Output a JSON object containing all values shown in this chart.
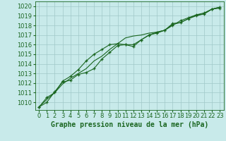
{
  "title": "Graphe pression niveau de la mer (hPa)",
  "bg_color": "#c8eaea",
  "grid_color": "#a0c8c8",
  "line_color": "#1a6620",
  "marker_color": "#1a6620",
  "xlim": [
    -0.5,
    23.5
  ],
  "ylim": [
    1009.2,
    1020.5
  ],
  "yticks": [
    1010,
    1011,
    1012,
    1013,
    1014,
    1015,
    1016,
    1017,
    1018,
    1019,
    1020
  ],
  "xticks": [
    0,
    1,
    2,
    3,
    4,
    5,
    6,
    7,
    8,
    9,
    10,
    11,
    12,
    13,
    14,
    15,
    16,
    17,
    18,
    19,
    20,
    21,
    22,
    23
  ],
  "line1": [
    1009.5,
    1010.0,
    1011.1,
    1012.1,
    1012.3,
    1012.9,
    1013.1,
    1013.5,
    1014.5,
    1015.2,
    1015.9,
    1016.0,
    1015.8,
    1016.5,
    1017.0,
    1017.2,
    1017.5,
    1018.2,
    1018.3,
    1018.7,
    1019.0,
    1019.2,
    1019.7,
    1019.8
  ],
  "line2": [
    1009.5,
    1010.5,
    1011.0,
    1012.2,
    1012.7,
    1013.4,
    1014.3,
    1015.0,
    1015.5,
    1016.0,
    1016.1,
    1016.0,
    1016.0,
    1016.5,
    1017.0,
    1017.3,
    1017.5,
    1018.0,
    1018.5,
    1018.8,
    1019.1,
    1019.3,
    1019.7,
    1019.9
  ],
  "line3": [
    1009.5,
    1010.3,
    1011.0,
    1011.9,
    1012.5,
    1013.0,
    1013.5,
    1014.3,
    1014.8,
    1015.5,
    1016.1,
    1016.7,
    1016.9,
    1017.0,
    1017.2,
    1017.3,
    1017.5,
    1018.1,
    1018.3,
    1018.7,
    1019.1,
    1019.2,
    1019.7,
    1019.9
  ],
  "tick_fontsize": 6.0,
  "title_fontsize": 7.0
}
